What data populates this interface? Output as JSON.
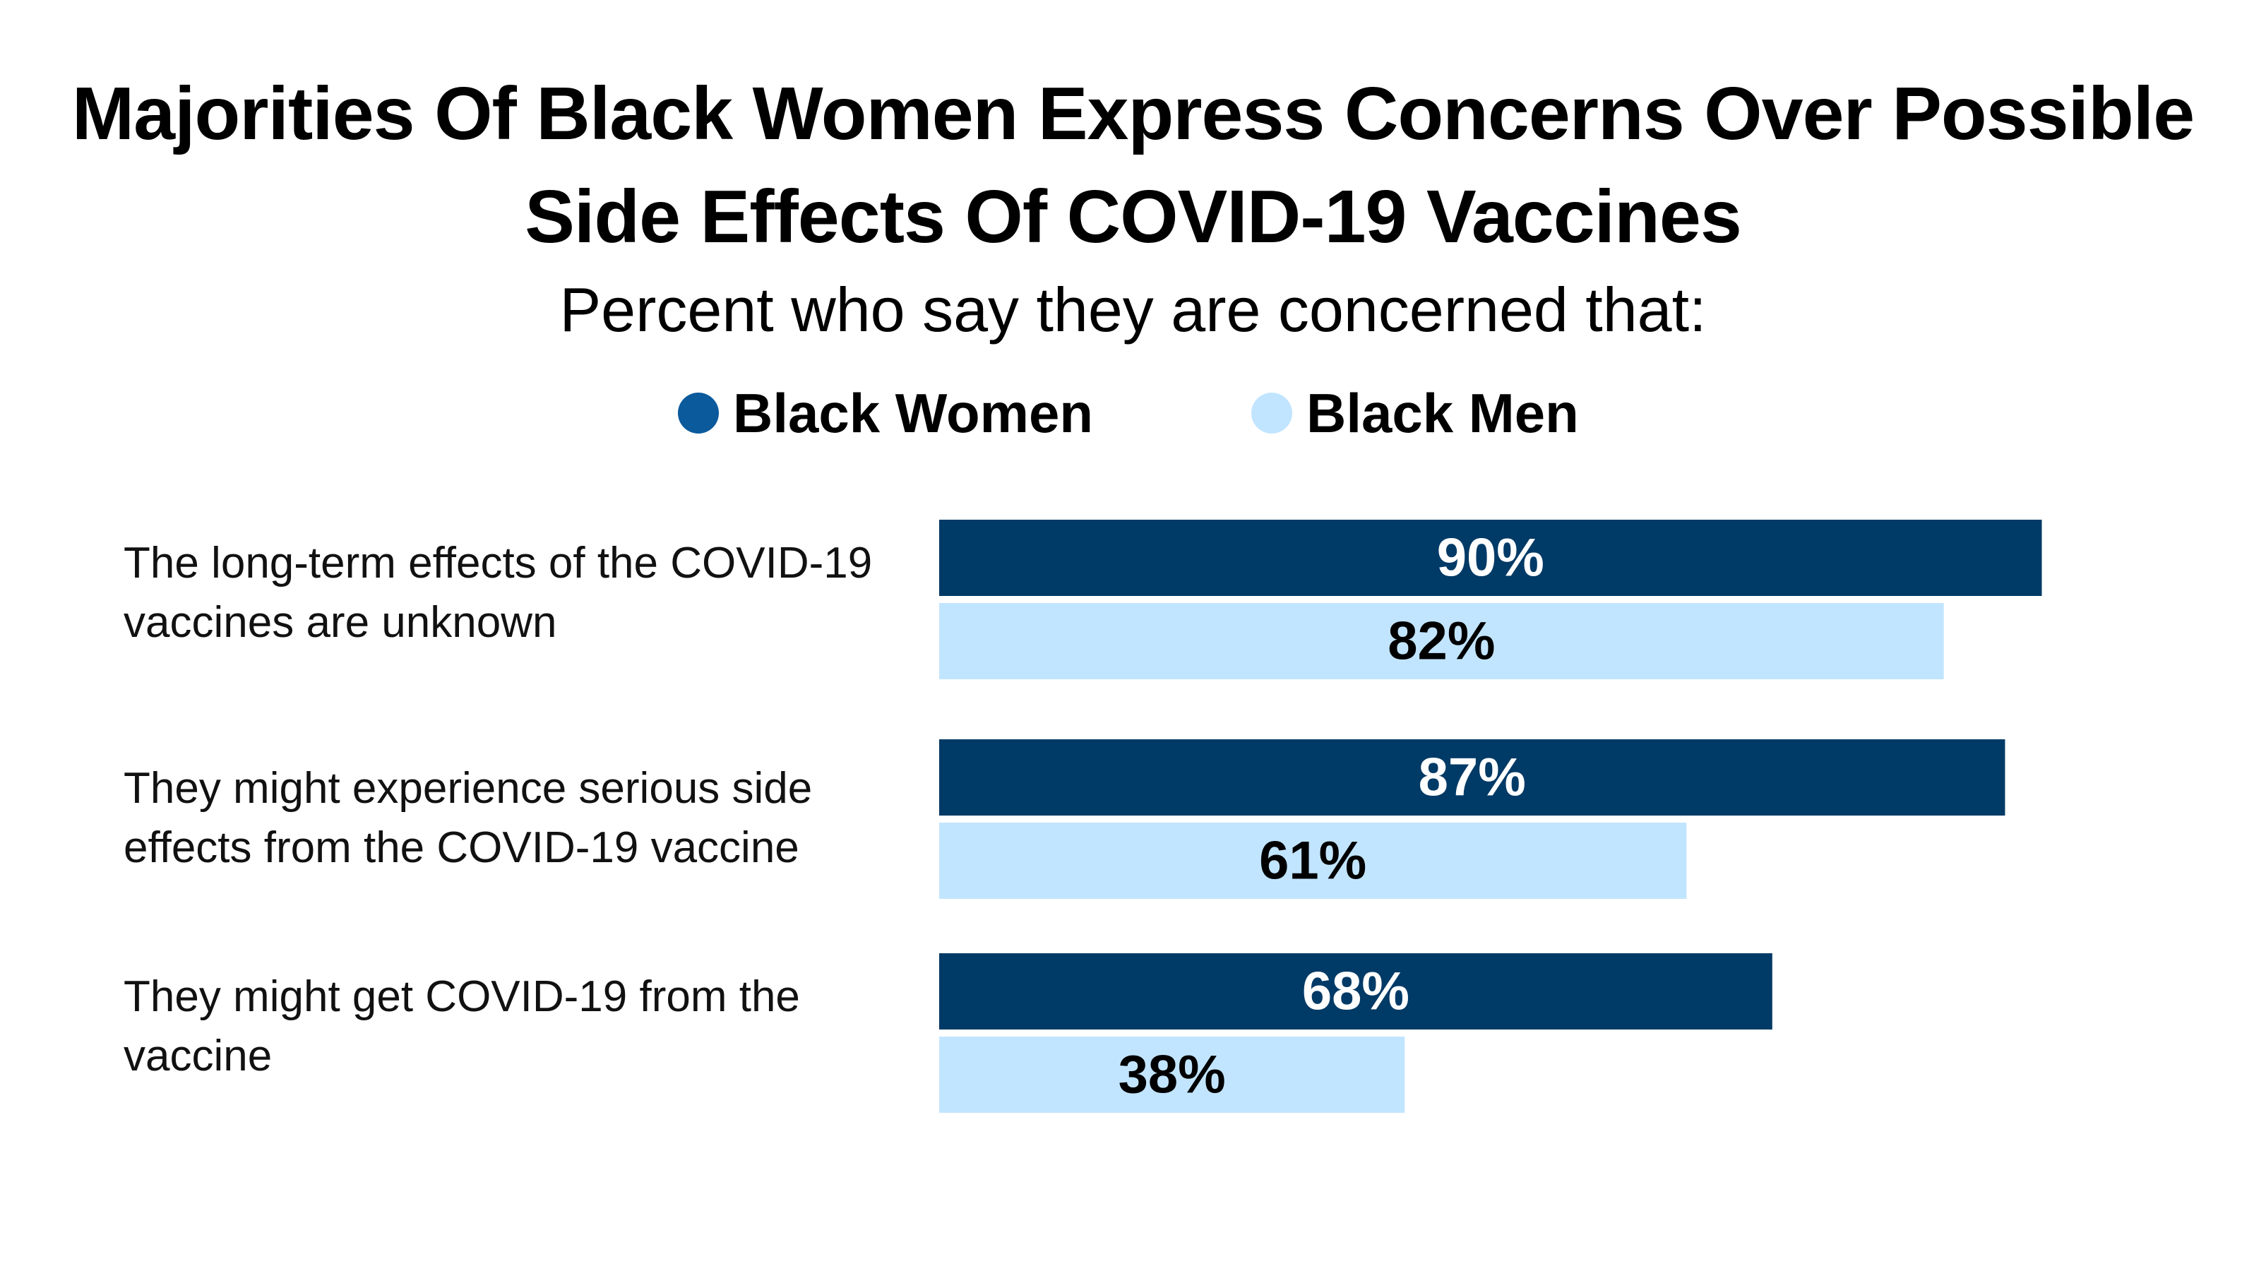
{
  "chart_data": {
    "type": "bar",
    "orientation": "horizontal",
    "title": "Majorities Of Black Women Express Concerns Over Possible Side Effects Of COVID-19 Vaccines",
    "title_lines": [
      "Majorities Of Black Women Express Concerns Over Possible",
      "Side Effects Of COVID-19 Vaccines"
    ],
    "subtitle": "Percent who say they are concerned that:",
    "categories": [
      "The long-term effects of the COVID-19 vaccines are unknown",
      "They might experience serious side effects from the COVID-19 vaccine",
      "They might get COVID-19 from the vaccine"
    ],
    "series": [
      {
        "name": "Black Women",
        "values": [
          90,
          87,
          68
        ],
        "color": "#003a66",
        "label_color": "#ffffff"
      },
      {
        "name": "Black Men",
        "values": [
          82,
          61,
          38
        ],
        "color": "#c2e5ff",
        "label_color": "#000000"
      }
    ],
    "value_suffix": "%",
    "xlim": [
      0,
      100
    ],
    "legend_position": "top-center",
    "grid": false,
    "xlabel": "",
    "ylabel": ""
  }
}
